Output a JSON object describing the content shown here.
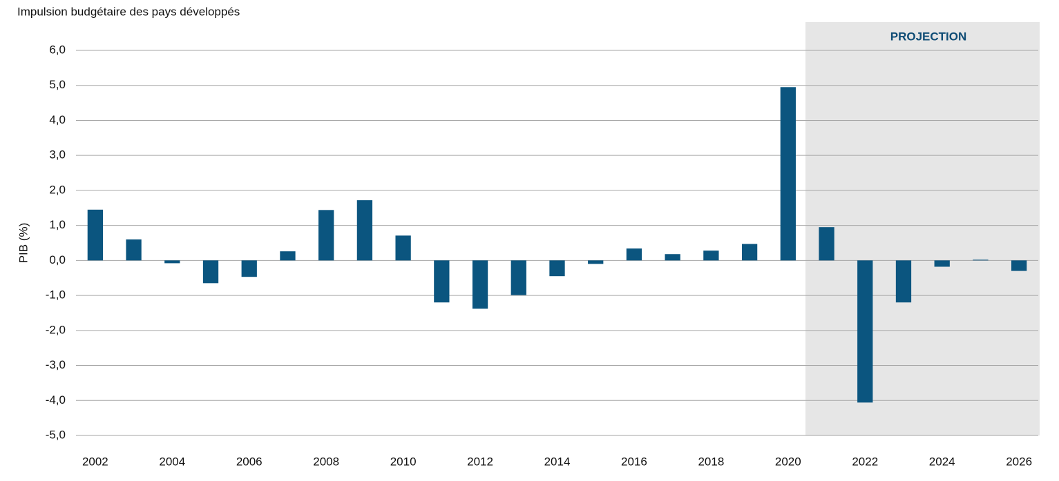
{
  "chart_data": {
    "type": "bar",
    "title": "Impulsion budgétaire des pays développés",
    "y_label": "PIB (%)",
    "annotation": "PROJECTION",
    "categories": [
      "2002",
      null,
      "2004",
      null,
      "2006",
      null,
      "2008",
      null,
      "2010",
      null,
      "2012",
      null,
      "2014",
      null,
      "2016",
      null,
      "2018",
      null,
      "2020",
      null,
      "2022",
      null,
      "2024",
      null,
      "2026"
    ],
    "values": [
      1.45,
      0.6,
      -0.08,
      -0.65,
      -0.47,
      0.26,
      1.44,
      1.72,
      0.71,
      -1.2,
      -1.38,
      -0.99,
      -0.45,
      -0.1,
      0.34,
      0.18,
      0.28,
      0.47,
      4.95,
      0.95,
      -4.06,
      -1.2,
      -0.18,
      0.02,
      -0.3
    ],
    "color": "#0b557f",
    "ylim": [
      -5,
      6
    ],
    "yticks": [
      {
        "value": -5,
        "label": "-5,0"
      },
      {
        "value": -4,
        "label": "-4,0"
      },
      {
        "value": -3,
        "label": "-3,0"
      },
      {
        "value": -2,
        "label": "-2,0"
      },
      {
        "value": -1,
        "label": "-1,0"
      },
      {
        "value": 0,
        "label": "0,0"
      },
      {
        "value": 1,
        "label": "1,0"
      },
      {
        "value": 2,
        "label": "2,0"
      },
      {
        "value": 3,
        "label": "3,0"
      },
      {
        "value": 4,
        "label": "4,0"
      },
      {
        "value": 5,
        "label": "5,0"
      },
      {
        "value": 6,
        "label": "6,0"
      }
    ],
    "grid": true
  }
}
